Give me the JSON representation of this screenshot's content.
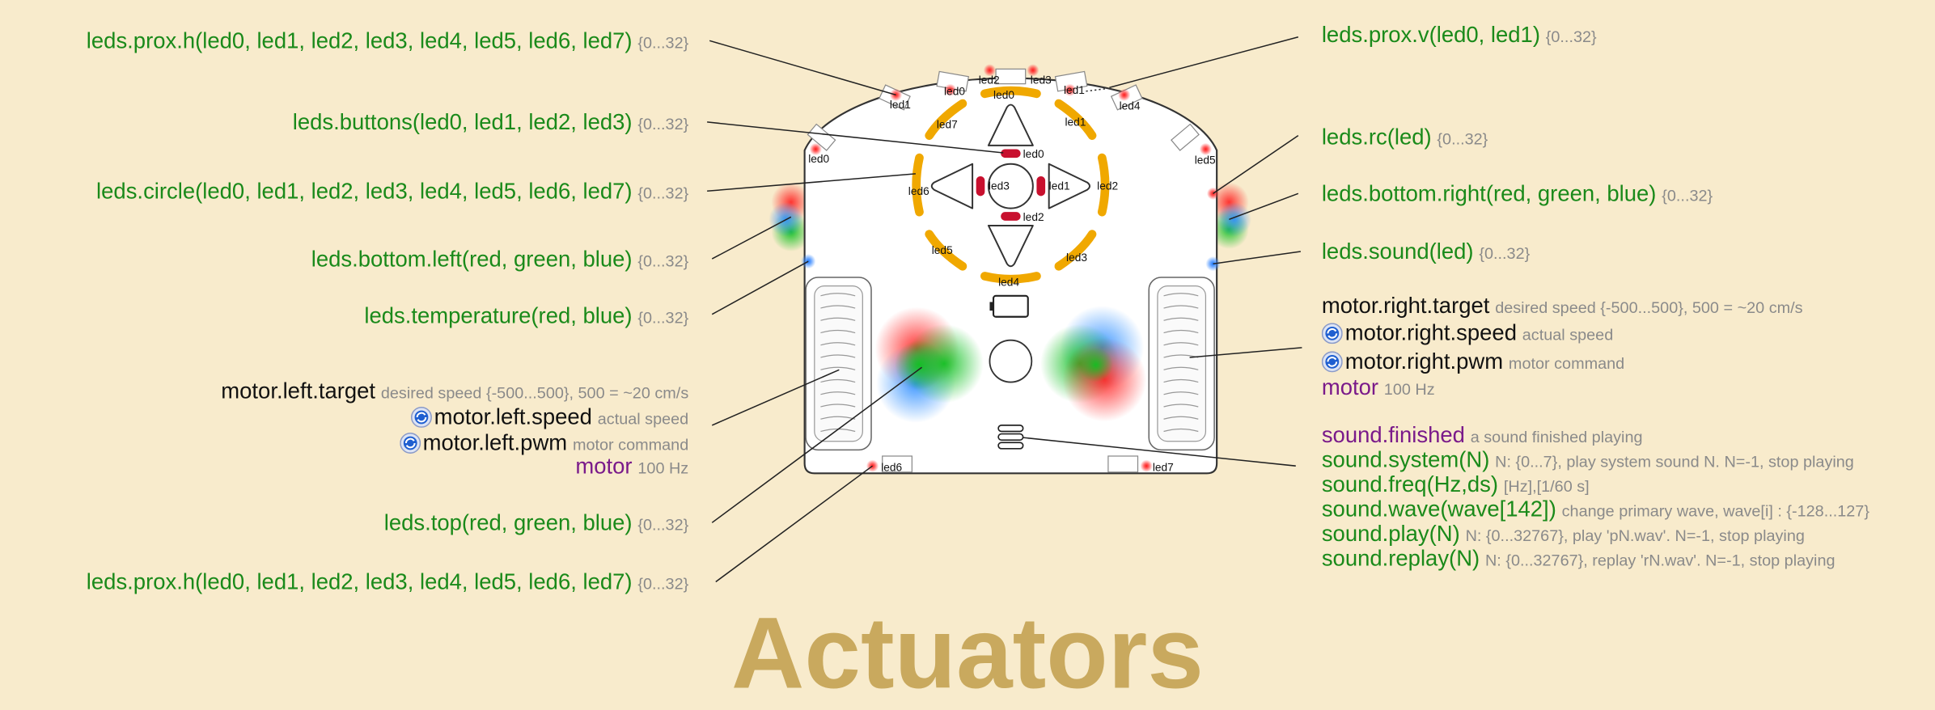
{
  "title": "Actuators",
  "left_labels": [
    {
      "main": "leds.prox.h(led0, led1, led2, led3, led4, led5, led6, led7)",
      "note": "{0...32}"
    },
    {
      "main": "leds.buttons(led0, led1, led2, led3)",
      "note": "{0...32}"
    },
    {
      "main": "leds.circle(led0, led1, led2, led3, led4, led5, led6, led7)",
      "note": "{0...32}"
    },
    {
      "main": "leds.bottom.left(red, green, blue)",
      "note": "{0...32}"
    },
    {
      "main": "leds.temperature(red, blue)",
      "note": "{0...32}"
    },
    {
      "main": "leds.top(red, green, blue)",
      "note": "{0...32}"
    },
    {
      "main": "leds.prox.h(led0, led1, led2, led3, led4, led5, led6, led7)",
      "note": "{0...32}"
    }
  ],
  "motor_left": {
    "target": "motor.left.target",
    "target_note": "desired speed {-500...500}, 500 = ~20 cm/s",
    "speed": "motor.left.speed",
    "speed_note": "actual speed",
    "pwm": "motor.left.pwm",
    "pwm_note": "motor command",
    "event": "motor",
    "event_note": "100 Hz"
  },
  "right_labels": [
    {
      "main": "leds.prox.v(led0, led1)",
      "note": "{0...32}"
    },
    {
      "main": "leds.rc(led)",
      "note": "{0...32}"
    },
    {
      "main": "leds.bottom.right(red, green, blue)",
      "note": "{0...32}"
    },
    {
      "main": "leds.sound(led)",
      "note": "{0...32}"
    }
  ],
  "motor_right": {
    "target": "motor.right.target",
    "target_note": "desired speed {-500...500}, 500 = ~20 cm/s",
    "speed": "motor.right.speed",
    "speed_note": "actual speed",
    "pwm": "motor.right.pwm",
    "pwm_note": "motor command",
    "event": "motor",
    "event_note": "100 Hz"
  },
  "sound": {
    "finished": "sound.finished",
    "finished_note": "a sound finished playing",
    "system": "sound.system(N)",
    "system_note": "N: {0...7}, play system sound N. N=-1, stop playing",
    "freq": "sound.freq(Hz,ds)",
    "freq_note": "[Hz],[1/60 s]",
    "wave": "sound.wave(wave[142])",
    "wave_note": "change primary wave, wave[i] : {-128...127}",
    "play": "sound.play(N)",
    "play_note": "N: {0...32767}, play 'pN.wav'. N=-1, stop playing",
    "replay": "sound.replay(N)",
    "replay_note": "N: {0...32767}, replay 'rN.wav'. N=-1, stop playing"
  },
  "robot_labels": {
    "front": [
      "led0",
      "led1",
      "led2",
      "led3",
      "led4",
      "led5"
    ],
    "front_v": [
      "led0",
      "led1"
    ],
    "rear": [
      "led6",
      "led7"
    ],
    "circle": [
      "led0",
      "led1",
      "led2",
      "led3",
      "led4",
      "led5",
      "led6",
      "led7"
    ],
    "buttons": [
      "led0",
      "led1",
      "led2",
      "led3"
    ]
  },
  "colors": {
    "background": "#f8ebcc",
    "green_text": "#1a8a1a",
    "purple_text": "#7a1a8a",
    "note_text": "#8a8a8a",
    "title": "#c9a95e",
    "circle_led": "#f0a800",
    "button_led": "#c8102e"
  }
}
